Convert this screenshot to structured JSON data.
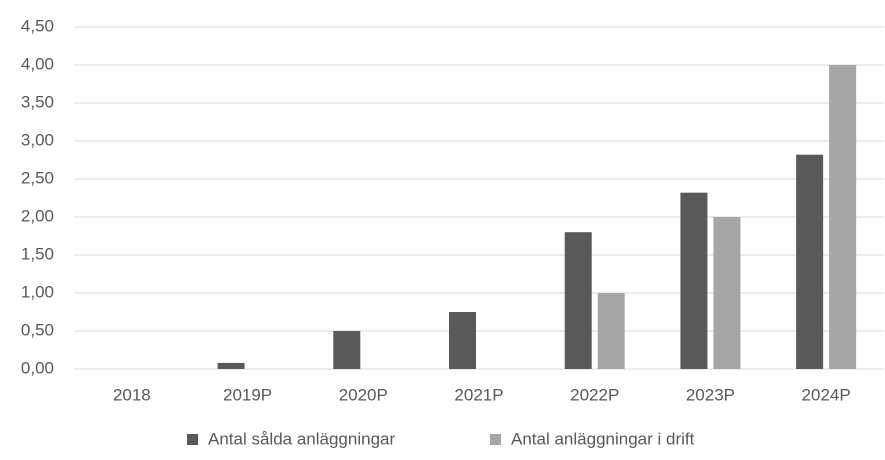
{
  "chart_data": {
    "type": "bar",
    "categories": [
      "2018",
      "2019P",
      "2020P",
      "2021P",
      "2022P",
      "2023P",
      "2024P"
    ],
    "series": [
      {
        "name": "Antal sålda anläggningar",
        "color": "#595959",
        "values": [
          0,
          0.08,
          0.5,
          0.75,
          1.8,
          2.32,
          2.82
        ]
      },
      {
        "name": "Antal anläggningar i drift",
        "color": "#a6a6a6",
        "values": [
          0,
          0,
          0,
          0,
          1.0,
          2.0,
          4.0
        ]
      }
    ],
    "ylim": [
      0,
      4.5
    ],
    "yticks": [
      {
        "value": 0,
        "label": "0,00"
      },
      {
        "value": 0.5,
        "label": "0,50"
      },
      {
        "value": 1,
        "label": "1,00"
      },
      {
        "value": 1.5,
        "label": "1,50"
      },
      {
        "value": 2,
        "label": "2,00"
      },
      {
        "value": 2.5,
        "label": "2,50"
      },
      {
        "value": 3,
        "label": "3,00"
      },
      {
        "value": 3.5,
        "label": "3,50"
      },
      {
        "value": 4,
        "label": "4,00"
      },
      {
        "value": 4.5,
        "label": "4,50"
      }
    ],
    "grid": true
  }
}
